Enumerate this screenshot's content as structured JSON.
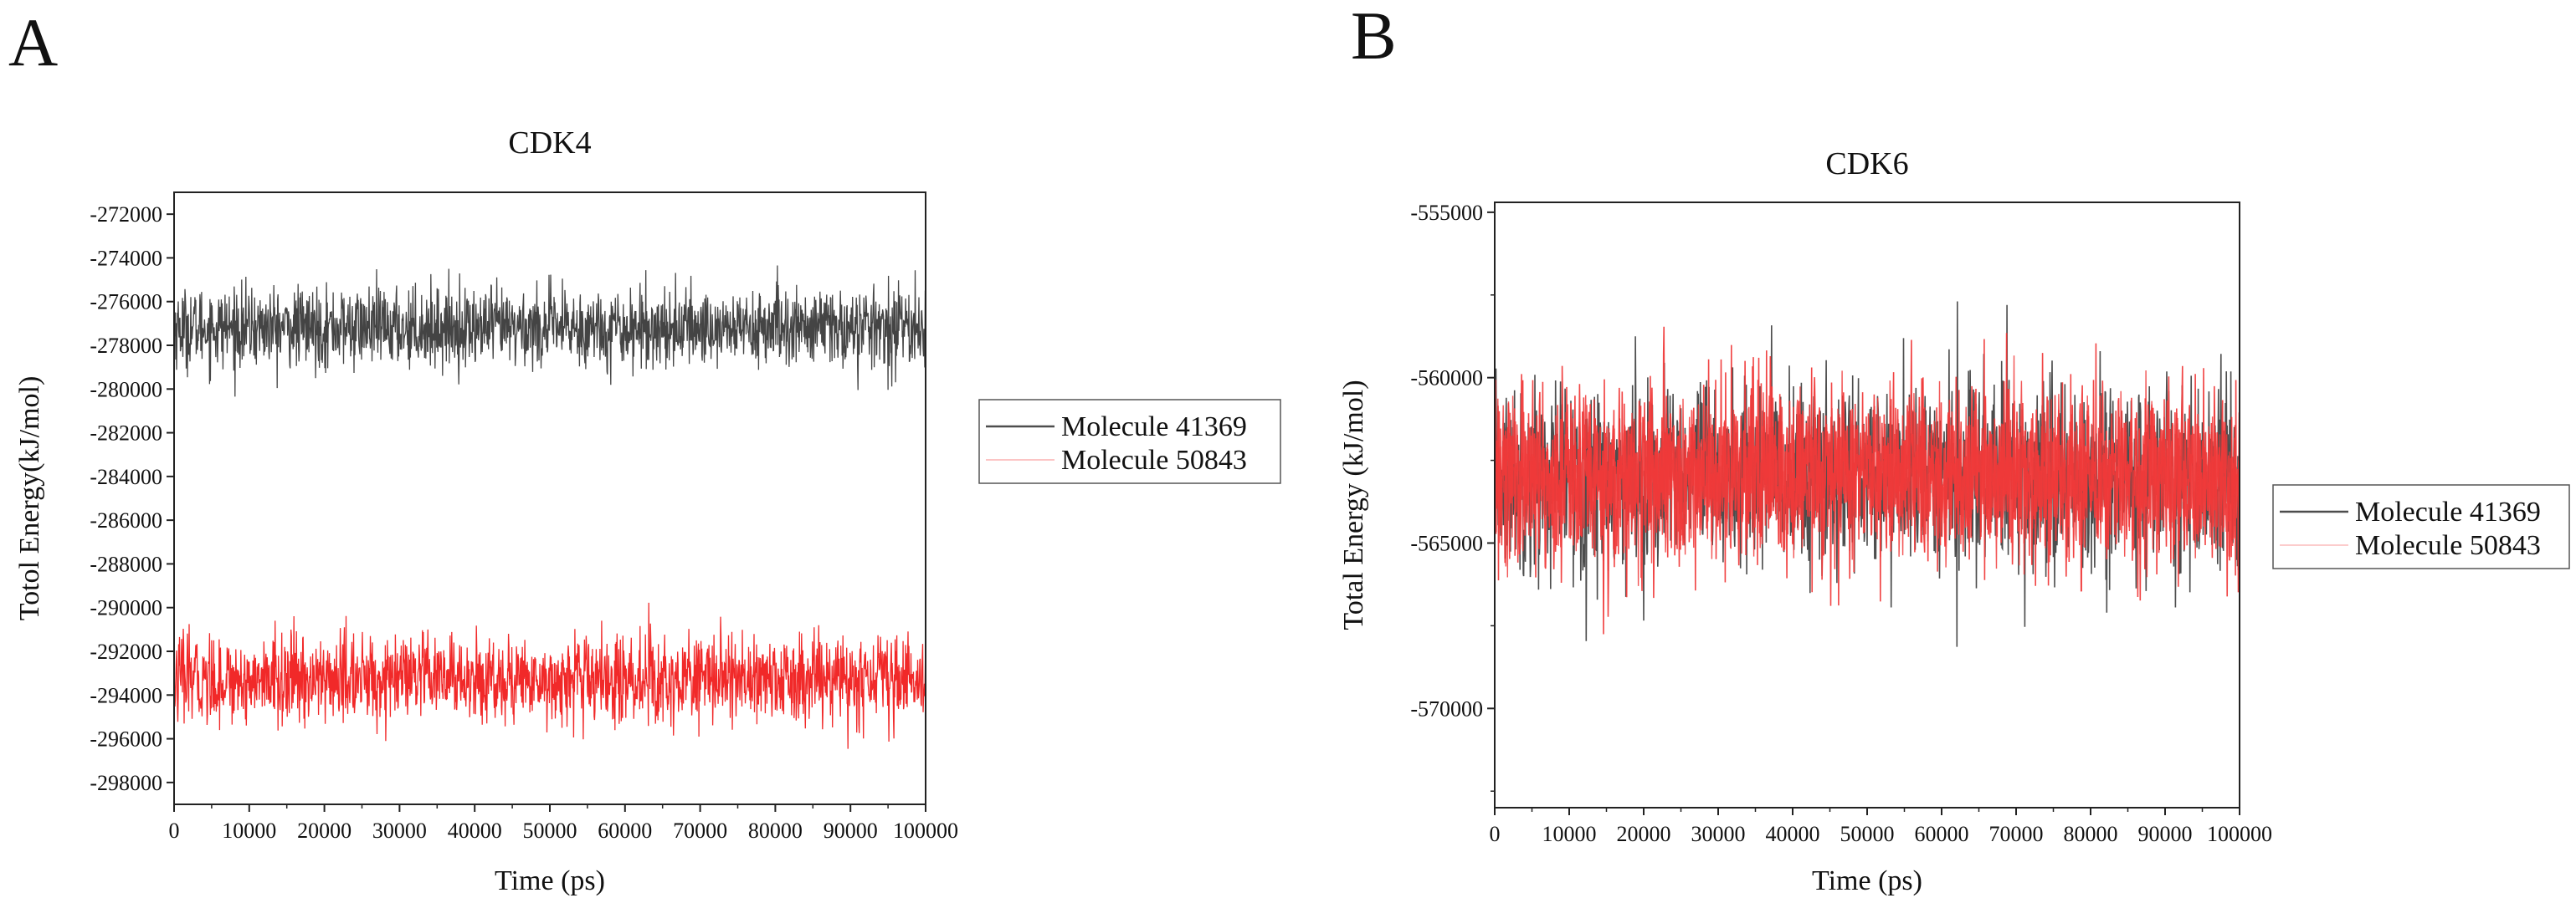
{
  "chart_data": [
    {
      "panel": "A",
      "type": "line",
      "title": "CDK4",
      "xlabel": "Time (ps)",
      "ylabel": "Totol Energy(kJ/mol)",
      "xlim": [
        0,
        100000
      ],
      "ylim": [
        -299000,
        -271000
      ],
      "xticks": [
        0,
        10000,
        20000,
        30000,
        40000,
        50000,
        60000,
        70000,
        80000,
        90000,
        100000
      ],
      "yticks": [
        -272000,
        -274000,
        -276000,
        -278000,
        -280000,
        -282000,
        -284000,
        -286000,
        -288000,
        -290000,
        -292000,
        -294000,
        -296000,
        -298000
      ],
      "legend_position": "right-outside",
      "series": [
        {
          "name": "Molecule 41369",
          "color": "#3a3a3a",
          "mean": -277200,
          "fluctuation_sd": 900,
          "range": [
            -281000,
            -273200
          ]
        },
        {
          "name": "Molecule 50843",
          "color": "#f01e1e",
          "mean": -293300,
          "fluctuation_sd": 1000,
          "range": [
            -297000,
            -289200
          ]
        }
      ]
    },
    {
      "panel": "B",
      "type": "line",
      "title": "CDK6",
      "xlabel": "Time (ps)",
      "ylabel": "Total Energy (kJ/mol)",
      "xlim": [
        0,
        100000
      ],
      "ylim": [
        -573000,
        -554700
      ],
      "xticks": [
        0,
        10000,
        20000,
        30000,
        40000,
        50000,
        60000,
        70000,
        80000,
        90000,
        100000
      ],
      "yticks": [
        -555000,
        -560000,
        -565000,
        -570000
      ],
      "legend_position": "right-outside",
      "series": [
        {
          "name": "Molecule 41369",
          "color": "#3a3a3a",
          "mean": -563000,
          "fluctuation_sd": 1400,
          "range": [
            -569000,
            -557000
          ]
        },
        {
          "name": "Molecule 50843",
          "color": "#f03a3a",
          "mean": -563000,
          "fluctuation_sd": 1400,
          "range": [
            -569000,
            -557500
          ]
        }
      ]
    }
  ]
}
